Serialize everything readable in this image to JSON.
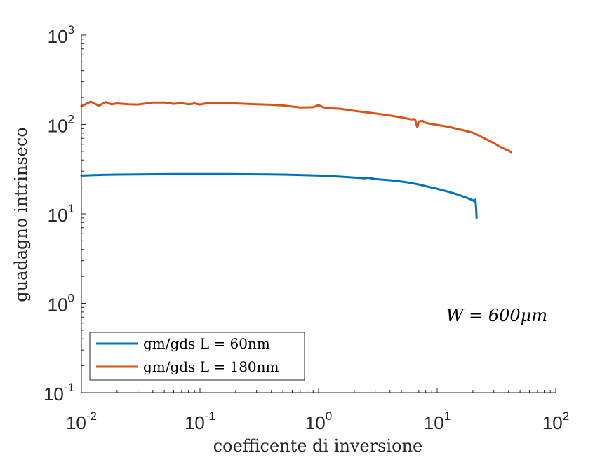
{
  "chart_data": {
    "type": "line",
    "xscale": "log",
    "yscale": "log",
    "xlim": [
      0.01,
      100
    ],
    "ylim": [
      0.1,
      1000
    ],
    "grid": false,
    "xlabel": "coefficente di inversione",
    "ylabel": "guadagno intrinseco",
    "annotation": "W = 600μm",
    "legend_position": "bottom-left",
    "xticks": [
      {
        "base": "10",
        "exp": "-2"
      },
      {
        "base": "10",
        "exp": "-1"
      },
      {
        "base": "10",
        "exp": "0"
      },
      {
        "base": "10",
        "exp": "1"
      },
      {
        "base": "10",
        "exp": "2"
      }
    ],
    "yticks": [
      {
        "base": "10",
        "exp": "-1"
      },
      {
        "base": "10",
        "exp": "0"
      },
      {
        "base": "10",
        "exp": "1"
      },
      {
        "base": "10",
        "exp": "2"
      },
      {
        "base": "10",
        "exp": "3"
      }
    ],
    "series": [
      {
        "name": "gm/gds L = 60nm",
        "color": "#0072BD",
        "x": [
          0.01,
          0.015,
          0.02,
          0.03,
          0.05,
          0.07,
          0.1,
          0.15,
          0.2,
          0.3,
          0.5,
          0.7,
          1.0,
          1.5,
          2.0,
          2.5,
          2.6,
          3.0,
          4.0,
          5.0,
          6.0,
          7.0,
          8.0,
          10.0,
          12.0,
          14.0,
          16.0,
          18.0,
          20.0,
          20.5,
          21.0,
          21.3,
          21.5
        ],
        "y": [
          26.8,
          27.3,
          27.5,
          27.6,
          27.8,
          27.9,
          27.9,
          27.9,
          27.8,
          27.7,
          27.5,
          27.2,
          26.8,
          26.1,
          25.5,
          25.0,
          25.4,
          24.5,
          23.8,
          23.0,
          22.2,
          21.3,
          20.4,
          19.1,
          17.9,
          16.9,
          15.9,
          15.0,
          14.2,
          13.8,
          14.4,
          11.5,
          9.0
        ]
      },
      {
        "name": "gm/gds L = 180nm",
        "color": "#D95319",
        "x": [
          0.01,
          0.012,
          0.014,
          0.016,
          0.018,
          0.02,
          0.025,
          0.03,
          0.04,
          0.05,
          0.06,
          0.07,
          0.08,
          0.09,
          0.1,
          0.12,
          0.15,
          0.2,
          0.3,
          0.4,
          0.5,
          0.7,
          0.9,
          1.0,
          1.1,
          1.2,
          1.5,
          2.0,
          3.0,
          4.0,
          5.0,
          6.0,
          6.5,
          6.8,
          7.0,
          7.5,
          8.0,
          10.0,
          12.0,
          15.0,
          20.0,
          25.0,
          30.0,
          35.0,
          40.0,
          42.0
        ],
        "y": [
          160,
          180,
          162,
          178,
          168,
          172,
          168,
          167,
          176,
          176,
          170,
          173,
          168,
          172,
          167,
          175,
          172,
          172,
          168,
          166,
          163,
          155,
          156,
          165,
          155,
          152,
          150,
          142,
          133,
          126,
          120,
          114,
          115,
          93,
          108,
          110,
          104,
          99,
          95,
          89,
          81,
          70,
          62,
          55,
          51,
          49
        ]
      }
    ]
  }
}
